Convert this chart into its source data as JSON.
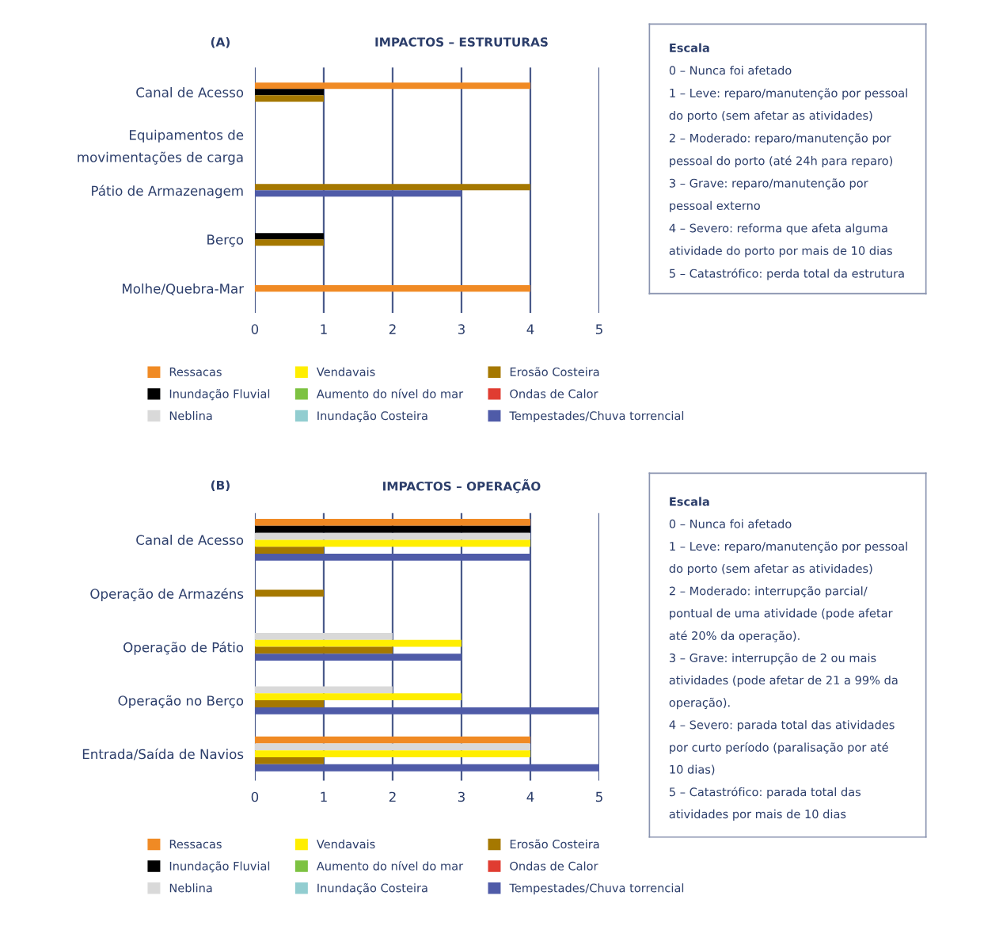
{
  "chart_data": [
    {
      "type": "bar",
      "orientation": "horizontal",
      "subtitle": "(A)",
      "title": "IMPACTOS – ESTRUTURAS",
      "categories": [
        "Canal de Acesso",
        "Equipamentos de\nmovimentações de carga",
        "Pátio de Armazenagem",
        "Berço",
        "Molhe/Quebra-Mar"
      ],
      "series": [
        {
          "name": "Ressacas",
          "color": "#f08a24",
          "values": [
            4,
            null,
            null,
            null,
            4
          ]
        },
        {
          "name": "Inundação Fluvial",
          "color": "#000000",
          "values": [
            1,
            null,
            null,
            1,
            null
          ]
        },
        {
          "name": "Neblina",
          "color": "#d9d9d9",
          "values": [
            null,
            null,
            null,
            null,
            null
          ]
        },
        {
          "name": "Vendavais",
          "color": "#ffee00",
          "values": [
            null,
            null,
            null,
            null,
            null
          ]
        },
        {
          "name": "Aumento do nível do mar",
          "color": "#7dc242",
          "values": [
            null,
            null,
            null,
            null,
            null
          ]
        },
        {
          "name": "Inundação Costeira",
          "color": "#92cdd0",
          "values": [
            null,
            null,
            null,
            null,
            null
          ]
        },
        {
          "name": "Erosão Costeira",
          "color": "#a57800",
          "values": [
            1,
            null,
            4,
            1,
            null
          ]
        },
        {
          "name": "Ondas de Calor",
          "color": "#e03c31",
          "values": [
            null,
            null,
            null,
            null,
            null
          ]
        },
        {
          "name": "Tempestades/Chuva torrencial",
          "color": "#4f5ba8",
          "values": [
            null,
            null,
            3,
            null,
            null
          ]
        }
      ],
      "xlim": [
        0,
        5
      ],
      "xticks": [
        0,
        1,
        2,
        3,
        4,
        5
      ],
      "grid": "x",
      "legend": "bottom"
    },
    {
      "type": "other",
      "title": "Escala",
      "annotations": [
        "0 – Nunca foi afetado",
        "1 – Leve: reparo/manutenção por pessoal",
        "do porto (sem afetar as atividades)",
        "2 – Moderado: reparo/manutenção por",
        "pessoal do porto (até 24h para reparo)",
        "3 – Grave: reparo/manutenção por",
        "pessoal externo",
        "4 – Severo: reforma que afeta alguma",
        "atividade do porto por mais de 10 dias",
        "5 – Catastrófico: perda total da estrutura"
      ]
    },
    {
      "type": "bar",
      "orientation": "horizontal",
      "subtitle": "(B)",
      "title": "IMPACTOS – OPERAÇÃO",
      "categories": [
        "Canal de Acesso",
        "Operação de Armazéns",
        "Operação de Pátio",
        "Operação no Berço",
        "Entrada/Saída de Navios"
      ],
      "series": [
        {
          "name": "Ressacas",
          "color": "#f08a24",
          "values": [
            4,
            null,
            null,
            null,
            4
          ]
        },
        {
          "name": "Inundação Fluvial",
          "color": "#000000",
          "values": [
            4,
            null,
            null,
            null,
            null
          ]
        },
        {
          "name": "Neblina",
          "color": "#d9d9d9",
          "values": [
            4,
            null,
            2,
            2,
            4
          ]
        },
        {
          "name": "Vendavais",
          "color": "#ffee00",
          "values": [
            4,
            null,
            3,
            3,
            4
          ]
        },
        {
          "name": "Aumento do nível do mar",
          "color": "#7dc242",
          "values": [
            null,
            null,
            null,
            null,
            null
          ]
        },
        {
          "name": "Inundação Costeira",
          "color": "#92cdd0",
          "values": [
            null,
            null,
            null,
            null,
            null
          ]
        },
        {
          "name": "Erosão Costeira",
          "color": "#a57800",
          "values": [
            1,
            1,
            2,
            1,
            1
          ]
        },
        {
          "name": "Ondas de Calor",
          "color": "#e03c31",
          "values": [
            null,
            null,
            null,
            null,
            null
          ]
        },
        {
          "name": "Tempestades/Chuva torrencial",
          "color": "#4f5ba8",
          "values": [
            4,
            null,
            3,
            5,
            5
          ]
        }
      ],
      "xlim": [
        0,
        5
      ],
      "xticks": [
        0,
        1,
        2,
        3,
        4,
        5
      ],
      "grid": "x",
      "legend": "bottom"
    },
    {
      "type": "other",
      "title": "Escala",
      "annotations": [
        "0 – Nunca foi afetado",
        "1 – Leve: reparo/manutenção por pessoal",
        "do porto (sem afetar as atividades)",
        "2 – Moderado: interrupção parcial/",
        "pontual de uma atividade (pode afetar",
        "até 20% da operação).",
        "3 – Grave: interrupção de 2 ou mais",
        "atividades (pode afetar de 21 a 99% da",
        "operação).",
        "4 – Severo: parada total das atividades",
        "por curto período (paralisação por até",
        "10 dias)",
        "5 – Catastrófico: parada total das",
        "atividades por mais de 10 dias"
      ]
    }
  ]
}
